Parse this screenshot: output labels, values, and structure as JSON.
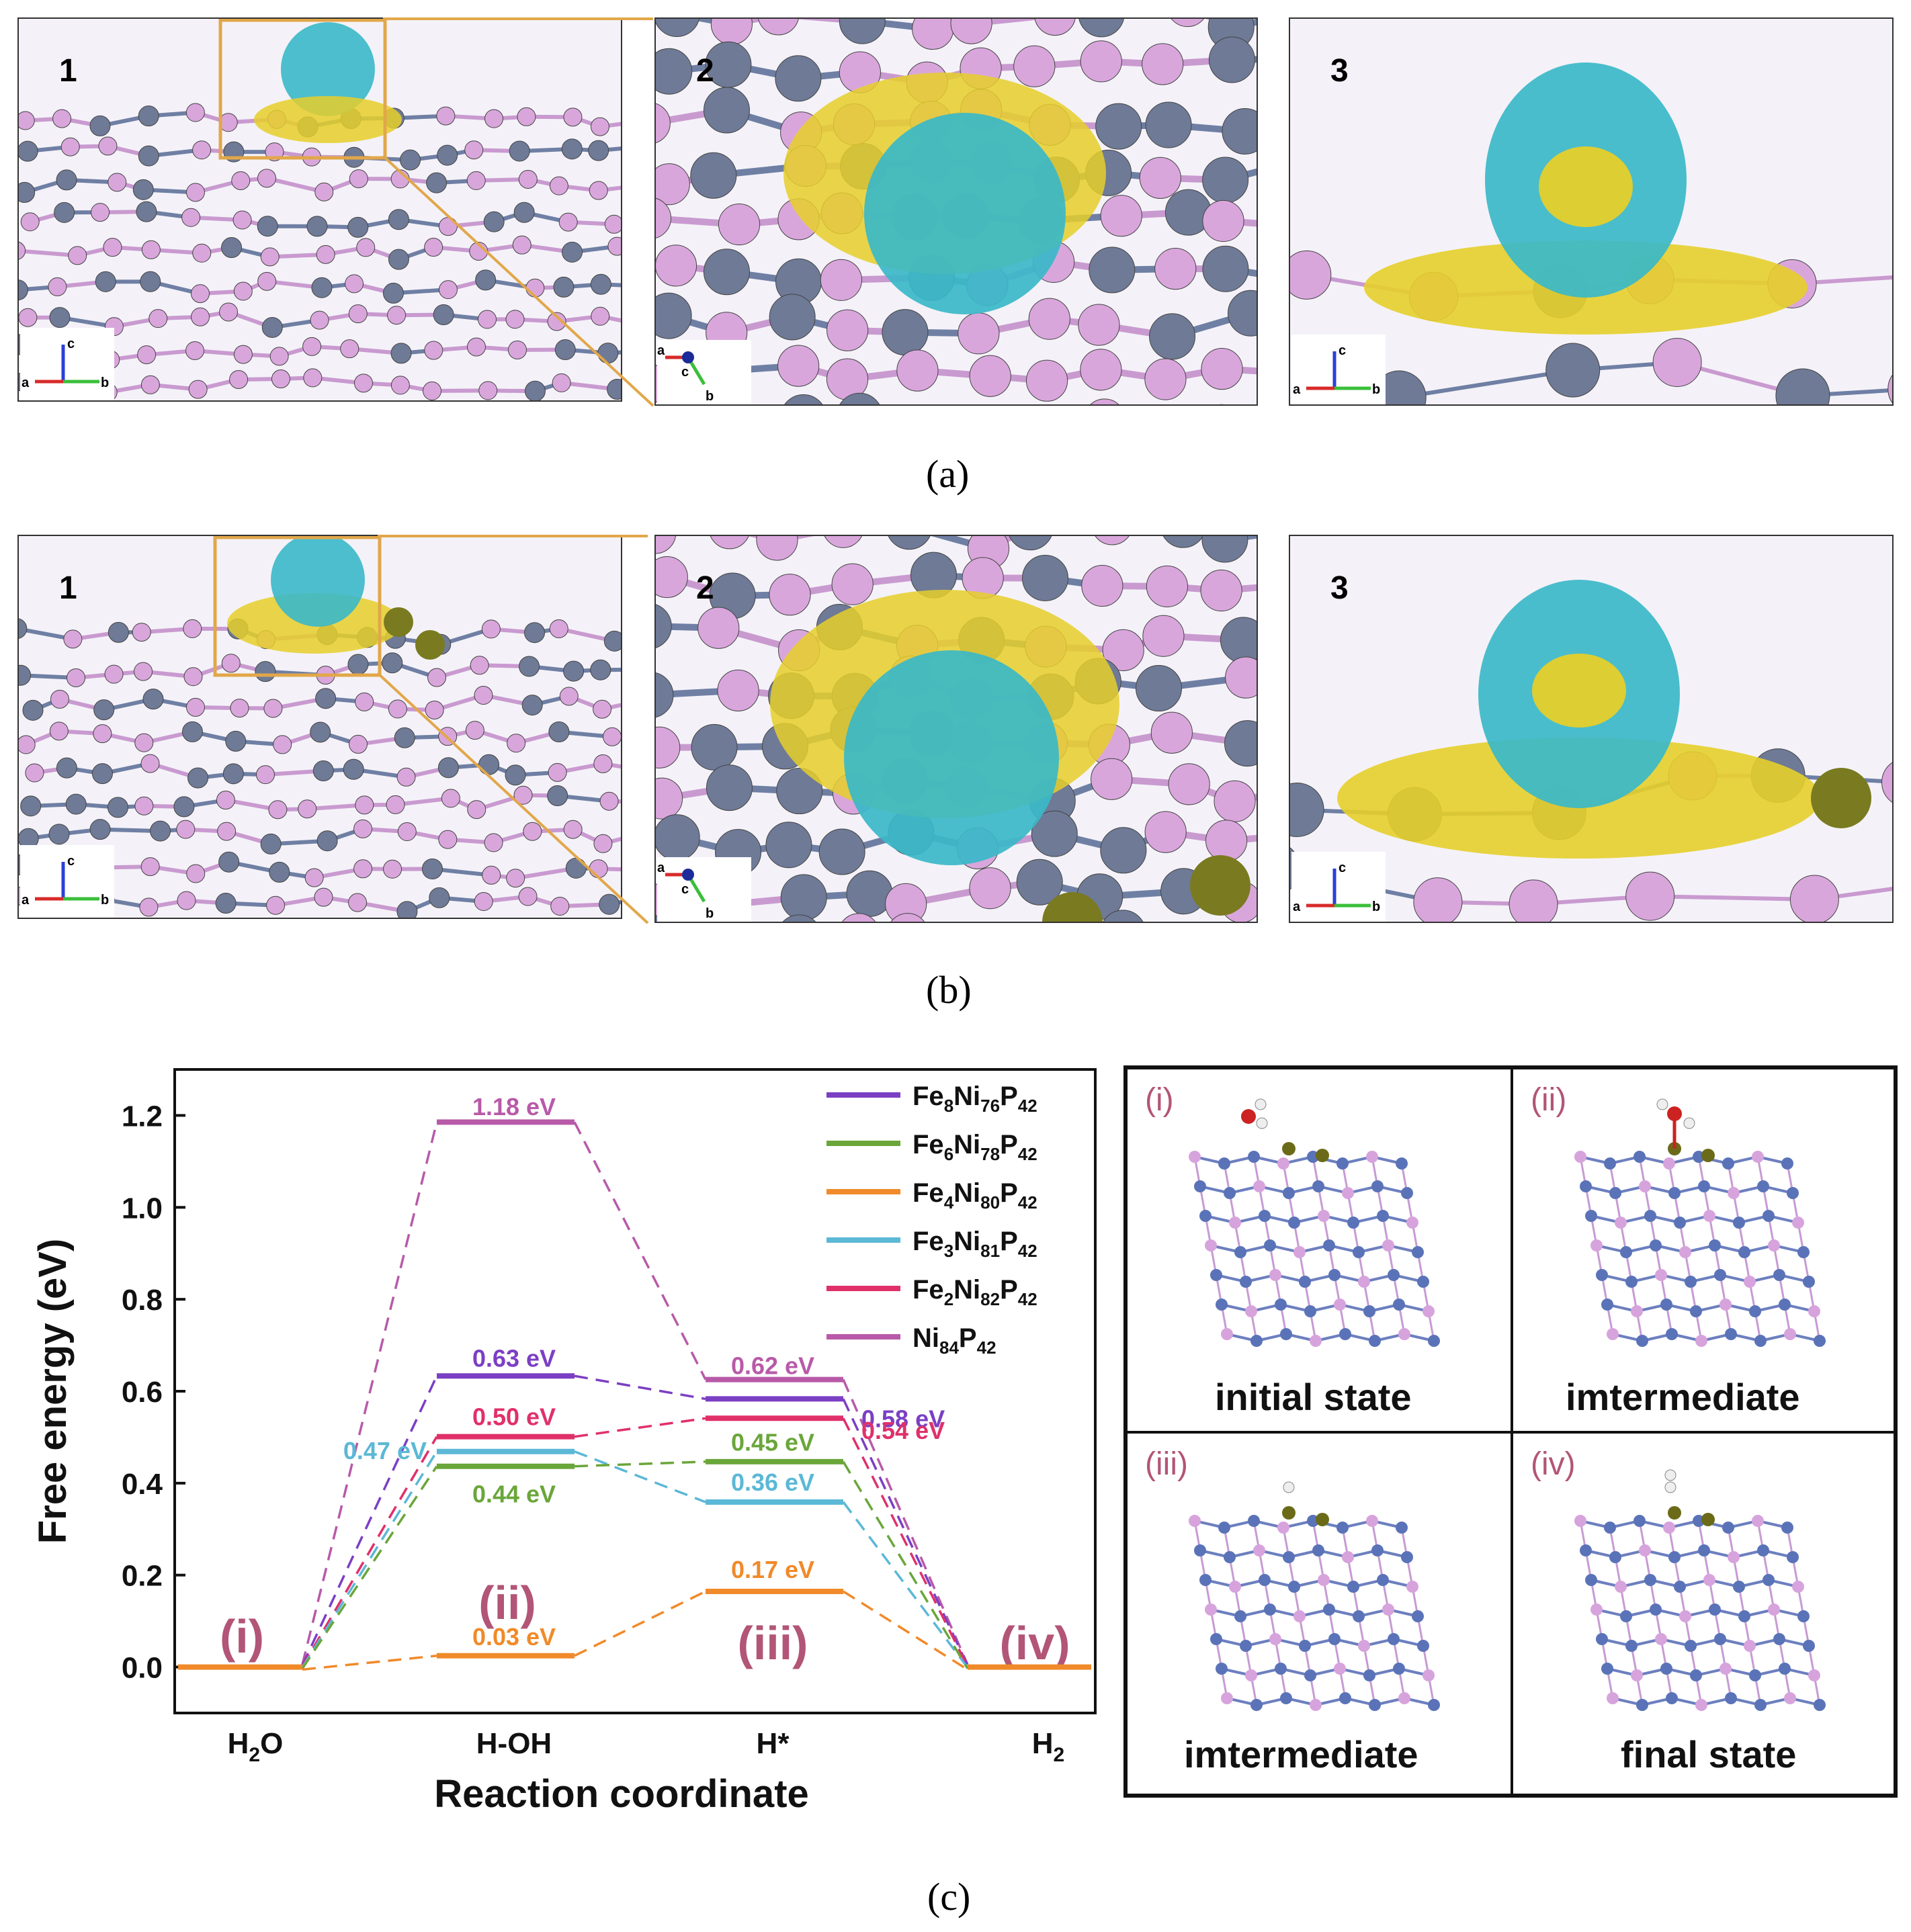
{
  "row_a": {
    "caption": "(a)",
    "panels": [
      {
        "label": "1",
        "axes": [
          "a",
          "b",
          "c"
        ]
      },
      {
        "label": "2",
        "axes": [
          "a",
          "b",
          "c"
        ]
      },
      {
        "label": "3",
        "axes": [
          "a",
          "b",
          "c"
        ]
      }
    ]
  },
  "row_b": {
    "caption": "(b)",
    "panels": [
      {
        "label": "1",
        "axes": [
          "a",
          "b",
          "c"
        ]
      },
      {
        "label": "2",
        "axes": [
          "a",
          "b",
          "c"
        ]
      },
      {
        "label": "3",
        "axes": [
          "a",
          "b",
          "c"
        ]
      }
    ]
  },
  "caption_c": "(c)",
  "colors": {
    "isosurface_cyan": "#3ab8c8",
    "isosurface_yellow": "#e6cf2a",
    "atom_p": "#d9a6dc",
    "atom_ni": "#6e7a96",
    "frame_orange": "#e2a74a"
  },
  "chart_data": {
    "type": "line",
    "xlabel": "Reaction coordinate",
    "ylabel": "Free energy (eV)",
    "ylim": [
      -0.1,
      1.3
    ],
    "yticks": [
      "0.0",
      "0.2",
      "0.4",
      "0.6",
      "0.8",
      "1.0",
      "1.2"
    ],
    "categories": [
      "H2O",
      "H-OH",
      "H*",
      "H2"
    ],
    "category_labels": [
      {
        "main": "H",
        "sub": "2",
        "tail": "O"
      },
      {
        "main": "H-OH",
        "sub": "",
        "tail": ""
      },
      {
        "main": "H*",
        "sub": "",
        "tail": ""
      },
      {
        "main": "H",
        "sub": "2",
        "tail": ""
      }
    ],
    "step_labels": [
      "(i)",
      "(ii)",
      "(iii)",
      "(iv)"
    ],
    "series": [
      {
        "name": "Fe8Ni76P42",
        "legend": [
          [
            "Fe",
            ""
          ],
          [
            "8",
            "sub"
          ],
          [
            "Ni",
            ""
          ],
          [
            "76",
            "sub"
          ],
          [
            "P",
            ""
          ],
          [
            "42",
            "sub"
          ]
        ],
        "color": "#7b3fc4",
        "values": [
          0,
          0.63,
          0.58,
          0
        ],
        "labels": [
          "",
          "0.63 eV",
          "0.58 eV",
          ""
        ]
      },
      {
        "name": "Fe6Ni78P42",
        "legend": [
          [
            "Fe",
            ""
          ],
          [
            "6",
            "sub"
          ],
          [
            "Ni",
            ""
          ],
          [
            "78",
            "sub"
          ],
          [
            "P",
            ""
          ],
          [
            "42",
            "sub"
          ]
        ],
        "color": "#6aa63a",
        "values": [
          0,
          0.44,
          0.45,
          0
        ],
        "labels": [
          "",
          "0.44 eV",
          "0.45 eV",
          ""
        ]
      },
      {
        "name": "Fe4Ni80P42",
        "legend": [
          [
            "Fe",
            ""
          ],
          [
            "4",
            "sub"
          ],
          [
            "Ni",
            ""
          ],
          [
            "80",
            "sub"
          ],
          [
            "P",
            ""
          ],
          [
            "42",
            "sub"
          ]
        ],
        "color": "#f08a2a",
        "values": [
          0,
          0.03,
          0.17,
          0
        ],
        "labels": [
          "",
          "0.03 eV",
          "0.17 eV",
          ""
        ]
      },
      {
        "name": "Fe3Ni81P42",
        "legend": [
          [
            "Fe",
            ""
          ],
          [
            "3",
            "sub"
          ],
          [
            "Ni",
            ""
          ],
          [
            "81",
            "sub"
          ],
          [
            "P",
            ""
          ],
          [
            "42",
            "sub"
          ]
        ],
        "color": "#5bb8d6",
        "values": [
          0,
          0.47,
          0.36,
          0
        ],
        "labels": [
          "",
          "0.47 eV",
          "0.36 eV",
          ""
        ]
      },
      {
        "name": "Fe2Ni82P42",
        "legend": [
          [
            "Fe",
            ""
          ],
          [
            "2",
            "sub"
          ],
          [
            "Ni",
            ""
          ],
          [
            "82",
            "sub"
          ],
          [
            "P",
            ""
          ],
          [
            "42",
            "sub"
          ]
        ],
        "color": "#e0306a",
        "values": [
          0,
          0.5,
          0.54,
          0
        ],
        "labels": [
          "",
          "0.50 eV",
          "0.54 eV",
          ""
        ]
      },
      {
        "name": "Ni84P42",
        "legend": [
          [
            "Ni",
            ""
          ],
          [
            "84",
            "sub"
          ],
          [
            "P",
            ""
          ],
          [
            "42",
            "sub"
          ]
        ],
        "color": "#b85aa8",
        "values": [
          0,
          1.18,
          0.62,
          0
        ],
        "labels": [
          "",
          "1.18 eV",
          "0.62 eV",
          ""
        ]
      }
    ]
  },
  "states": [
    {
      "roman": "(i)",
      "label": "initial state"
    },
    {
      "roman": "(ii)",
      "label": "imtermediate"
    },
    {
      "roman": "(iii)",
      "label": "imtermediate"
    },
    {
      "roman": "(iv)",
      "label": "final state"
    }
  ]
}
